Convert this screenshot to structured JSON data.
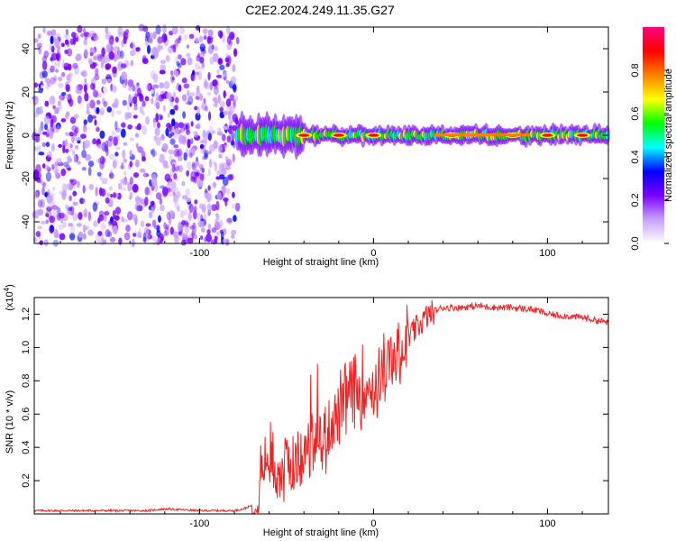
{
  "title": "C2E2.2024.249.11.35.G27",
  "chart_data": [
    {
      "type": "heatmap",
      "title": "C2E2.2024.249.11.35.G27",
      "xlabel": "Height of straight line (km)",
      "ylabel": "Frequency (Hz)",
      "xlim": [
        -195,
        135
      ],
      "ylim": [
        -50,
        50
      ],
      "xticks": [
        -100,
        0,
        100
      ],
      "xtick_labels": [
        "-100",
        "0",
        "100"
      ],
      "yticks": [
        -40,
        -20,
        0,
        20,
        40
      ],
      "ytick_labels": [
        "-40",
        "-20",
        "0",
        "20",
        "40"
      ],
      "colorbar": {
        "label": "Normalized spectral amplitude",
        "range": [
          0,
          1
        ],
        "ticks": [
          0.0,
          0.2,
          0.4,
          0.6,
          0.8
        ],
        "tick_labels": [
          "0.0",
          "0.2",
          "0.4",
          "0.6",
          "0.8"
        ],
        "colormap": [
          "#ffffff",
          "#c8a0ff",
          "#7a00ff",
          "#0000ff",
          "#00ffff",
          "#00ff00",
          "#ffff00",
          "#ff8000",
          "#ff0000",
          "#ff0080"
        ]
      },
      "features": {
        "noise_region_x": [
          -195,
          -78
        ],
        "signal_band_center_hz": 0,
        "strong_peak_x": [
          -40,
          -20,
          0,
          45,
          80,
          100,
          120
        ]
      }
    },
    {
      "type": "line",
      "xlabel": "Height of straight line (km)",
      "ylabel": "SNR (10 * v/v)",
      "scale_label": "(x10",
      "scale_exp": "4",
      "scale_close": ")",
      "xlim": [
        -195,
        135
      ],
      "ylim": [
        0,
        1.3
      ],
      "xticks": [
        -100,
        0,
        100
      ],
      "xtick_labels": [
        "-100",
        "0",
        "100"
      ],
      "yticks": [
        0.2,
        0.4,
        0.6,
        0.8,
        1.0,
        1.2
      ],
      "ytick_labels": [
        "0.2",
        "0.4",
        "0.6",
        "0.8",
        "1.0",
        "1.2"
      ],
      "series": [
        {
          "name": "SNR",
          "color": "#ee2222",
          "x": [
            -195,
            -180,
            -160,
            -140,
            -130,
            -120,
            -100,
            -90,
            -80,
            -75,
            -70,
            -65,
            -62,
            -58,
            -55,
            -50,
            -45,
            -40,
            -35,
            -30,
            -25,
            -20,
            -15,
            -10,
            -5,
            0,
            5,
            10,
            15,
            20,
            25,
            30,
            35,
            40,
            50,
            60,
            70,
            80,
            90,
            95,
            100,
            110,
            120,
            130,
            135
          ],
          "y": [
            0.02,
            0.02,
            0.02,
            0.02,
            0.02,
            0.03,
            0.02,
            0.02,
            0.02,
            0.03,
            0.05,
            0.2,
            0.35,
            0.3,
            0.25,
            0.3,
            0.3,
            0.3,
            0.45,
            0.4,
            0.55,
            0.6,
            0.7,
            0.72,
            0.78,
            0.75,
            0.85,
            0.9,
            0.95,
            1.05,
            1.12,
            1.18,
            1.22,
            1.24,
            1.24,
            1.25,
            1.24,
            1.24,
            1.23,
            1.22,
            1.2,
            1.19,
            1.18,
            1.16,
            1.15
          ]
        }
      ]
    }
  ]
}
